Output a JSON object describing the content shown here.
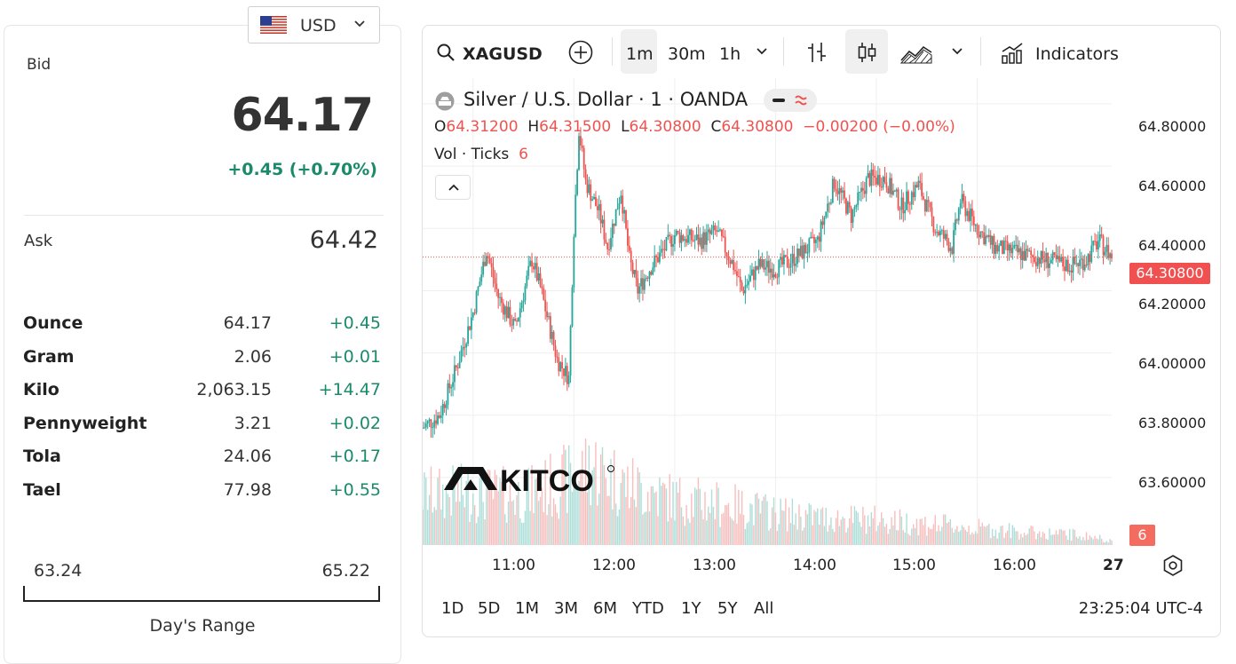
{
  "currency": {
    "code": "USD",
    "flag_icon": "us-flag-icon"
  },
  "bid": {
    "label": "Bid",
    "value": "64.17",
    "change": "+0.45 (+0.70%)"
  },
  "ask": {
    "label": "Ask",
    "value": "64.42"
  },
  "units": [
    {
      "name": "Ounce",
      "price": "64.17",
      "change": "+0.45"
    },
    {
      "name": "Gram",
      "price": "2.06",
      "change": "+0.01"
    },
    {
      "name": "Kilo",
      "price": "2,063.15",
      "change": "+14.47"
    },
    {
      "name": "Pennyweight",
      "price": "3.21",
      "change": "+0.02"
    },
    {
      "name": "Tola",
      "price": "24.06",
      "change": "+0.17"
    },
    {
      "name": "Tael",
      "price": "77.98",
      "change": "+0.55"
    }
  ],
  "day_range": {
    "low": "63.24",
    "high": "65.22",
    "label": "Day's Range"
  },
  "toolbar": {
    "symbol": "XAGUSD",
    "intervals": [
      "1m",
      "30m",
      "1h"
    ],
    "active_interval": "1m",
    "indicators_label": "Indicators"
  },
  "legend": {
    "title": "Silver / U.S. Dollar · 1 · OANDA",
    "o_label": "O",
    "o": "64.31200",
    "h_label": "H",
    "h": "64.31500",
    "l_label": "L",
    "l": "64.30800",
    "c_label": "C",
    "c": "64.30800",
    "change": "−0.00200 (−0.00%)",
    "vol_label": "Vol · Ticks",
    "vol_value": "6"
  },
  "price_axis": [
    "64.80000",
    "64.60000",
    "64.40000",
    "64.20000",
    "64.00000",
    "63.80000",
    "63.60000"
  ],
  "last_price": "64.30800",
  "volume_badge": "6",
  "time_axis": [
    "11:00",
    "12:00",
    "13:00",
    "14:00",
    "15:00",
    "16:00",
    "27"
  ],
  "ranges": [
    "1D",
    "5D",
    "1M",
    "3M",
    "6M",
    "YTD",
    "1Y",
    "5Y",
    "All"
  ],
  "clock": "23:25:04 UTC-4",
  "colors": {
    "up": "#26a69a",
    "down": "#ef5350",
    "positive_text": "#1b8a6b",
    "last_price_bg": "#f05050"
  },
  "chart_data": {
    "type": "candlestick",
    "symbol": "XAGUSD",
    "interval": "1m",
    "y_range": [
      63.42,
      64.86
    ],
    "x_range": [
      "10:30",
      "17:20"
    ],
    "price_path": [
      [
        "10:30",
        63.76
      ],
      [
        "10:40",
        63.8
      ],
      [
        "10:50",
        63.95
      ],
      [
        "11:00",
        64.13
      ],
      [
        "11:08",
        64.33
      ],
      [
        "11:15",
        64.18
      ],
      [
        "11:25",
        64.08
      ],
      [
        "11:35",
        64.3
      ],
      [
        "11:40",
        64.21
      ],
      [
        "11:50",
        63.98
      ],
      [
        "11:57",
        63.92
      ],
      [
        "12:00",
        64.4
      ],
      [
        "12:03",
        64.72
      ],
      [
        "12:07",
        64.55
      ],
      [
        "12:15",
        64.45
      ],
      [
        "12:20",
        64.34
      ],
      [
        "12:28",
        64.52
      ],
      [
        "12:33",
        64.3
      ],
      [
        "12:38",
        64.2
      ],
      [
        "12:45",
        64.27
      ],
      [
        "13:00",
        64.38
      ],
      [
        "13:15",
        64.36
      ],
      [
        "13:25",
        64.39
      ],
      [
        "13:35",
        64.28
      ],
      [
        "13:40",
        64.2
      ],
      [
        "13:50",
        64.28
      ],
      [
        "14:00",
        64.27
      ],
      [
        "14:10",
        64.3
      ],
      [
        "14:25",
        64.36
      ],
      [
        "14:35",
        64.55
      ],
      [
        "14:45",
        64.44
      ],
      [
        "14:55",
        64.56
      ],
      [
        "15:05",
        64.56
      ],
      [
        "15:15",
        64.47
      ],
      [
        "15:25",
        64.54
      ],
      [
        "15:35",
        64.4
      ],
      [
        "15:45",
        64.34
      ],
      [
        "15:50",
        64.49
      ],
      [
        "16:00",
        64.4
      ],
      [
        "16:10",
        64.34
      ],
      [
        "16:25",
        64.32
      ],
      [
        "16:40",
        64.3
      ],
      [
        "16:55",
        64.28
      ],
      [
        "17:05",
        64.3
      ],
      [
        "17:12",
        64.36
      ],
      [
        "17:20",
        64.31
      ]
    ],
    "volume_path": [
      [
        "10:30",
        60
      ],
      [
        "11:00",
        62
      ],
      [
        "11:30",
        58
      ],
      [
        "12:00",
        80
      ],
      [
        "12:10",
        95
      ],
      [
        "12:30",
        72
      ],
      [
        "13:00",
        55
      ],
      [
        "13:30",
        48
      ],
      [
        "14:00",
        38
      ],
      [
        "14:30",
        32
      ],
      [
        "15:00",
        30
      ],
      [
        "15:30",
        25
      ],
      [
        "16:00",
        20
      ],
      [
        "16:30",
        15
      ],
      [
        "17:00",
        12
      ],
      [
        "17:20",
        6
      ]
    ],
    "last_price": 64.308
  }
}
